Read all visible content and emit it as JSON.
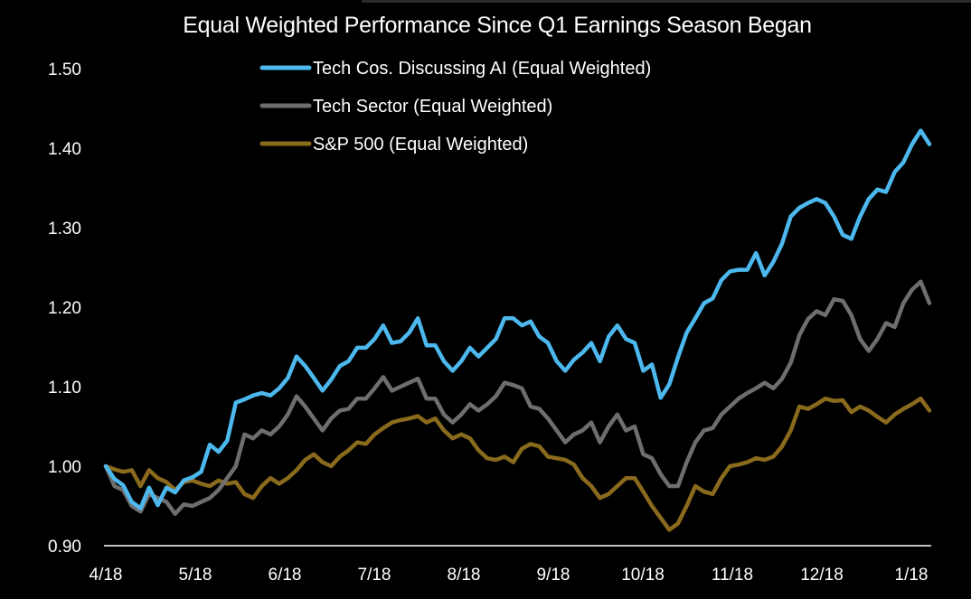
{
  "chart_data": {
    "type": "line",
    "title": "Equal Weighted Performance Since Q1 Earnings Season Began",
    "xlabel": "",
    "ylabel": "",
    "ylim": [
      0.9,
      1.5
    ],
    "yticks": [
      "0.90",
      "1.00",
      "1.10",
      "1.20",
      "1.30",
      "1.40",
      "1.50"
    ],
    "xticks": [
      "4/18",
      "5/18",
      "6/18",
      "7/18",
      "8/18",
      "9/18",
      "10/18",
      "11/18",
      "12/18",
      "1/18"
    ],
    "grid": false,
    "legend_position": "top-center",
    "series": [
      {
        "name": "Tech Cos. Discussing AI (Equal Weighted)",
        "color": "#4db8ee",
        "values": [
          1.0,
          0.984,
          0.976,
          0.955,
          0.947,
          0.973,
          0.951,
          0.973,
          0.967,
          0.982,
          0.986,
          0.993,
          1.027,
          1.018,
          1.032,
          1.08,
          1.084,
          1.089,
          1.092,
          1.089,
          1.098,
          1.111,
          1.138,
          1.126,
          1.111,
          1.095,
          1.109,
          1.126,
          1.132,
          1.149,
          1.149,
          1.16,
          1.177,
          1.155,
          1.157,
          1.168,
          1.186,
          1.152,
          1.152,
          1.132,
          1.12,
          1.132,
          1.149,
          1.138,
          1.149,
          1.16,
          1.186,
          1.186,
          1.177,
          1.182,
          1.163,
          1.155,
          1.132,
          1.12,
          1.134,
          1.143,
          1.155,
          1.132,
          1.163,
          1.177,
          1.16,
          1.155,
          1.12,
          1.128,
          1.086,
          1.103,
          1.137,
          1.168,
          1.186,
          1.205,
          1.211,
          1.234,
          1.245,
          1.247,
          1.247,
          1.268,
          1.24,
          1.257,
          1.28,
          1.314,
          1.325,
          1.331,
          1.336,
          1.331,
          1.314,
          1.291,
          1.286,
          1.314,
          1.336,
          1.348,
          1.345,
          1.37,
          1.382,
          1.405,
          1.422,
          1.405
        ]
      },
      {
        "name": "Tech Sector (Equal Weighted)",
        "color": "#6e6e6e",
        "values": [
          1.0,
          0.975,
          0.97,
          0.95,
          0.943,
          0.965,
          0.96,
          0.955,
          0.94,
          0.952,
          0.95,
          0.955,
          0.96,
          0.97,
          0.985,
          1.0,
          1.04,
          1.035,
          1.045,
          1.04,
          1.05,
          1.065,
          1.088,
          1.075,
          1.06,
          1.045,
          1.06,
          1.07,
          1.072,
          1.085,
          1.085,
          1.098,
          1.112,
          1.095,
          1.1,
          1.105,
          1.11,
          1.085,
          1.085,
          1.065,
          1.055,
          1.065,
          1.078,
          1.07,
          1.078,
          1.088,
          1.105,
          1.102,
          1.098,
          1.075,
          1.072,
          1.06,
          1.045,
          1.03,
          1.04,
          1.045,
          1.055,
          1.03,
          1.05,
          1.065,
          1.045,
          1.05,
          1.015,
          1.01,
          0.99,
          0.975,
          0.975,
          1.005,
          1.03,
          1.045,
          1.048,
          1.065,
          1.075,
          1.085,
          1.092,
          1.098,
          1.105,
          1.098,
          1.11,
          1.13,
          1.165,
          1.185,
          1.195,
          1.19,
          1.21,
          1.208,
          1.19,
          1.16,
          1.145,
          1.16,
          1.18,
          1.175,
          1.205,
          1.222,
          1.232,
          1.205
        ]
      },
      {
        "name": "S&P 500 (Equal Weighted)",
        "color": "#8a6a1c",
        "values": [
          1.0,
          0.996,
          0.993,
          0.995,
          0.975,
          0.995,
          0.985,
          0.98,
          0.97,
          0.98,
          0.982,
          0.978,
          0.975,
          0.982,
          0.978,
          0.98,
          0.965,
          0.96,
          0.975,
          0.985,
          0.978,
          0.985,
          0.995,
          1.008,
          1.015,
          1.005,
          1.0,
          1.012,
          1.02,
          1.03,
          1.028,
          1.04,
          1.048,
          1.055,
          1.058,
          1.06,
          1.063,
          1.055,
          1.06,
          1.045,
          1.035,
          1.04,
          1.035,
          1.02,
          1.01,
          1.008,
          1.012,
          1.005,
          1.022,
          1.028,
          1.025,
          1.012,
          1.01,
          1.008,
          1.002,
          0.985,
          0.975,
          0.96,
          0.965,
          0.975,
          0.985,
          0.985,
          0.968,
          0.95,
          0.935,
          0.92,
          0.928,
          0.95,
          0.975,
          0.968,
          0.965,
          0.985,
          1.0,
          1.002,
          1.005,
          1.01,
          1.008,
          1.012,
          1.025,
          1.045,
          1.075,
          1.072,
          1.078,
          1.085,
          1.082,
          1.083,
          1.068,
          1.075,
          1.07,
          1.062,
          1.055,
          1.065,
          1.072,
          1.078,
          1.085,
          1.07
        ]
      }
    ]
  }
}
